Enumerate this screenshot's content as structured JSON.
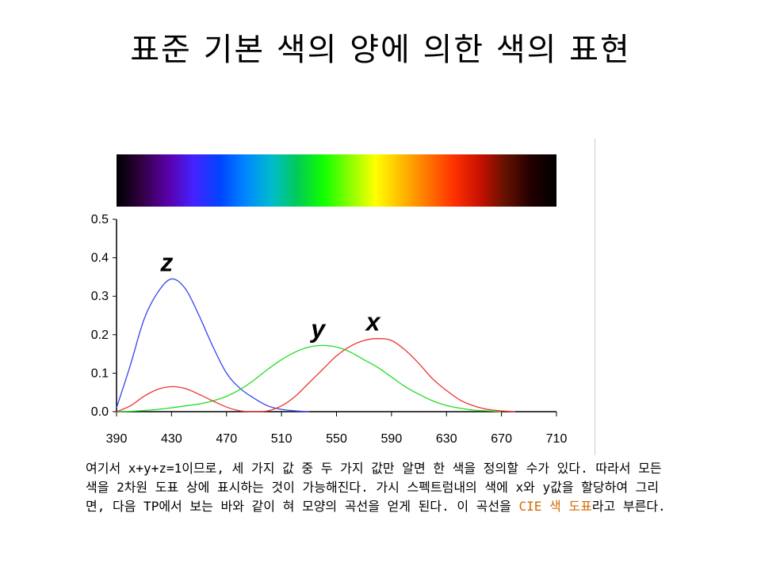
{
  "title": "표준 기본 색의 양에 의한 색의 표현",
  "chart_data": {
    "type": "line",
    "xlabel": "",
    "ylabel": "",
    "xlim": [
      390,
      710
    ],
    "ylim": [
      0.0,
      0.5
    ],
    "xticks": [
      "390",
      "430",
      "470",
      "510",
      "550",
      "590",
      "630",
      "670",
      "710"
    ],
    "yticks": [
      "0.0",
      "0.1",
      "0.2",
      "0.3",
      "0.4",
      "0.5"
    ],
    "x": [
      390,
      400,
      410,
      420,
      430,
      440,
      450,
      460,
      470,
      480,
      490,
      500,
      510,
      520,
      530,
      540,
      550,
      560,
      570,
      580,
      590,
      600,
      610,
      620,
      630,
      640,
      650,
      660,
      670,
      680,
      690,
      700,
      710
    ],
    "series": [
      {
        "name": "z",
        "color": "#3344ee",
        "values": [
          0.01,
          0.12,
          0.24,
          0.31,
          0.345,
          0.32,
          0.25,
          0.17,
          0.1,
          0.06,
          0.035,
          0.015,
          0.006,
          0.002,
          0.0,
          null,
          null,
          null,
          null,
          null,
          null,
          null,
          null,
          null,
          null,
          null,
          null,
          null,
          null,
          null,
          null,
          null,
          null
        ]
      },
      {
        "name": "y",
        "color": "#22dd22",
        "values": [
          0.0,
          0.001,
          0.003,
          0.006,
          0.01,
          0.015,
          0.02,
          0.028,
          0.04,
          0.058,
          0.082,
          0.11,
          0.135,
          0.155,
          0.168,
          0.172,
          0.168,
          0.155,
          0.135,
          0.115,
          0.09,
          0.065,
          0.045,
          0.028,
          0.016,
          0.009,
          0.004,
          0.002,
          0.0,
          null,
          null,
          null,
          null
        ]
      },
      {
        "name": "x",
        "color": "#ee3333",
        "values": [
          0.0,
          0.015,
          0.04,
          0.058,
          0.065,
          0.06,
          0.045,
          0.028,
          0.012,
          0.002,
          0.0,
          0.002,
          0.015,
          0.04,
          0.075,
          0.11,
          0.145,
          0.17,
          0.185,
          0.19,
          0.185,
          0.16,
          0.125,
          0.085,
          0.055,
          0.03,
          0.015,
          0.006,
          0.002,
          0.0,
          null,
          null,
          null
        ]
      }
    ],
    "spectrum_colors": [
      "#000000",
      "#330044",
      "#5a00aa",
      "#4422ff",
      "#0044ff",
      "#0088ff",
      "#00bbcc",
      "#00cc55",
      "#11ff00",
      "#88ff00",
      "#ffff00",
      "#ffbb00",
      "#ff7700",
      "#ff3300",
      "#cc1100",
      "#661100",
      "#220000",
      "#000000"
    ]
  },
  "text": {
    "para_before": "여기서 x+y+z=1이므로, 세 가지 값 중 두 가지 값만 알면 한 색을 정의할 수가 있다. 따라서 모든 색을 2차원 도표 상에 표시하는 것이 가능해진다. 가시 스펙트럼내의 색에 x와 y값을 할당하여 그리면, 다음 TP에서 보는 바와 같이 혀 모양의 곡선을 얻게 된다. 이 곡선을 ",
    "highlight": "CIE 색 도표",
    "para_after": "라고 부른다."
  }
}
